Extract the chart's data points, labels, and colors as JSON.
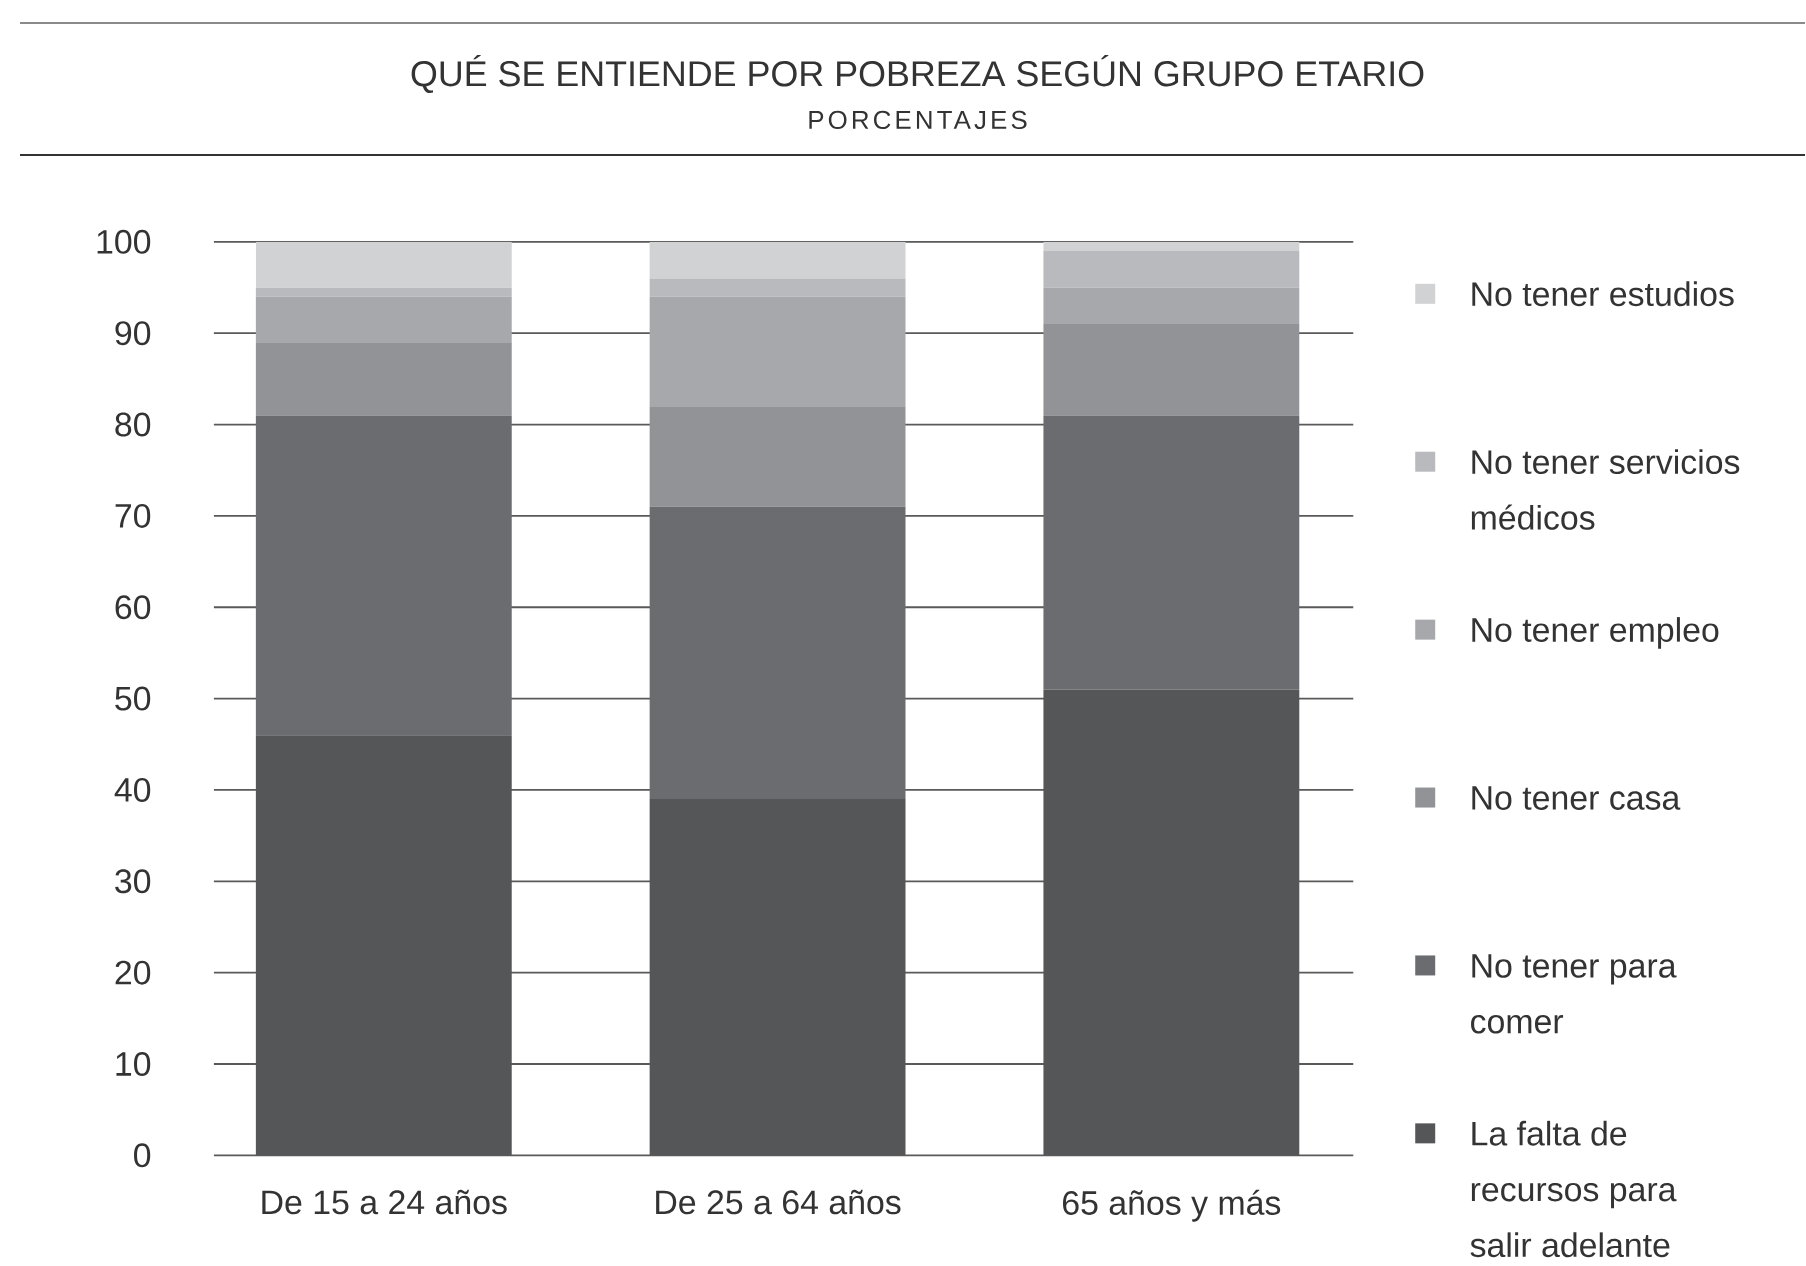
{
  "chart_data": {
    "type": "bar",
    "stacked": true,
    "title": "QUÉ SE ENTIENDE POR POBREZA SEGÚN GRUPO ETARIO",
    "subtitle": "PORCENTAJES",
    "categories": [
      "De 15 a 24 años",
      "De 25 a 64 años",
      "65 años y más"
    ],
    "series": [
      {
        "name": "La falta de recursos para salir adelante",
        "color": "#555658",
        "values": [
          46,
          39,
          51
        ]
      },
      {
        "name": "No tener para comer",
        "color": "#6b6c70",
        "values": [
          35,
          32,
          30
        ]
      },
      {
        "name": "No tener casa",
        "color": "#929397",
        "values": [
          8,
          11,
          10
        ]
      },
      {
        "name": "No tener empleo",
        "color": "#a7a8ab",
        "values": [
          5,
          12,
          4
        ]
      },
      {
        "name": "No tener servicios médicos",
        "color": "#b9babd",
        "values": [
          1,
          2,
          4
        ]
      },
      {
        "name": "No tener estudios",
        "color": "#d1d2d4",
        "values": [
          5,
          4,
          1
        ]
      }
    ],
    "ylim": [
      0,
      100
    ],
    "yticks": [
      0,
      10,
      20,
      30,
      40,
      50,
      60,
      70,
      80,
      90,
      100
    ],
    "grid": "y",
    "legend": "right"
  }
}
